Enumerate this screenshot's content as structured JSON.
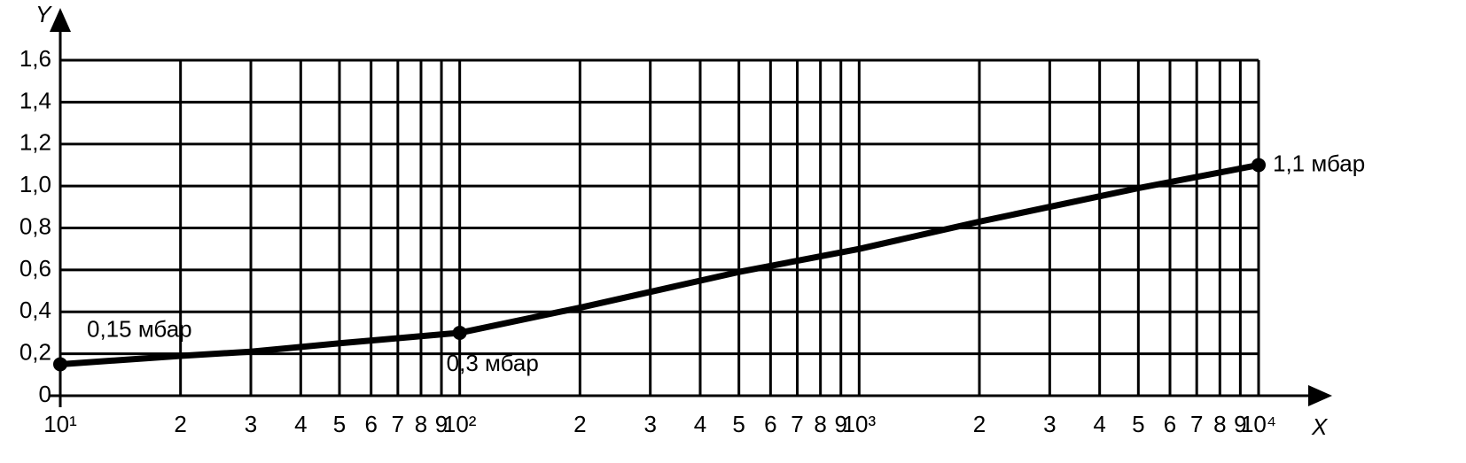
{
  "chart_data": {
    "type": "line",
    "x_label": "X",
    "y_label": "Y",
    "log_x": true,
    "grid": true,
    "color": "#000000",
    "xlim": [
      10,
      10000
    ],
    "ylim": [
      0,
      1.6
    ],
    "xticks": [
      {
        "value": 10,
        "label": "10¹"
      },
      {
        "value": 20,
        "label": "2"
      },
      {
        "value": 30,
        "label": "3"
      },
      {
        "value": 40,
        "label": "4"
      },
      {
        "value": 50,
        "label": "5"
      },
      {
        "value": 60,
        "label": "6"
      },
      {
        "value": 70,
        "label": "7"
      },
      {
        "value": 80,
        "label": "8"
      },
      {
        "value": 90,
        "label": "9"
      },
      {
        "value": 100,
        "label": "10²"
      },
      {
        "value": 200,
        "label": "2"
      },
      {
        "value": 300,
        "label": "3"
      },
      {
        "value": 400,
        "label": "4"
      },
      {
        "value": 500,
        "label": "5"
      },
      {
        "value": 600,
        "label": "6"
      },
      {
        "value": 700,
        "label": "7"
      },
      {
        "value": 800,
        "label": "8"
      },
      {
        "value": 900,
        "label": "9"
      },
      {
        "value": 1000,
        "label": "10³"
      },
      {
        "value": 2000,
        "label": "2"
      },
      {
        "value": 3000,
        "label": "3"
      },
      {
        "value": 4000,
        "label": "4"
      },
      {
        "value": 5000,
        "label": "5"
      },
      {
        "value": 6000,
        "label": "6"
      },
      {
        "value": 7000,
        "label": "7"
      },
      {
        "value": 8000,
        "label": "8"
      },
      {
        "value": 9000,
        "label": "9"
      },
      {
        "value": 10000,
        "label": "10⁴"
      }
    ],
    "yticks": [
      0,
      {
        "value": 0.2,
        "label": "0,2"
      },
      {
        "value": 0.4,
        "label": "0,4"
      },
      {
        "value": 0.6,
        "label": "0,6"
      },
      {
        "value": 0.8,
        "label": "0,8"
      },
      {
        "value": 1.0,
        "label": "1,0"
      },
      {
        "value": 1.2,
        "label": "1,2"
      },
      {
        "value": 1.4,
        "label": "1,4"
      },
      {
        "value": 1.6,
        "label": "1,6"
      }
    ],
    "x": [
      10,
      20,
      30,
      50,
      100,
      200,
      500,
      1000,
      2000,
      5000,
      10000
    ],
    "values": [
      0.15,
      0.19,
      0.21,
      0.25,
      0.3,
      0.42,
      0.59,
      0.7,
      0.83,
      0.99,
      1.1
    ],
    "annotations": [
      {
        "text": "0,15 мбар",
        "x": 10,
        "y": 0.15
      },
      {
        "text": "0,3 мбар",
        "x": 100,
        "y": 0.3
      },
      {
        "text": "1,1 мбар",
        "x": 10000,
        "y": 1.1
      }
    ]
  }
}
